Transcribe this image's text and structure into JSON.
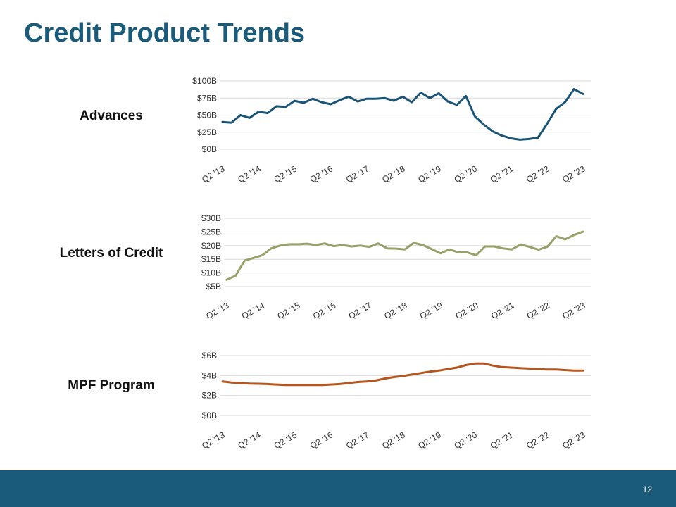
{
  "slide": {
    "title": "Credit Product Trends",
    "page_number": "12",
    "footer_color": "#1a5a7a"
  },
  "chart_data": [
    {
      "type": "line",
      "row_label": "Advances",
      "color": "#1a5577",
      "ylim": [
        0,
        100
      ],
      "yticks": [
        0,
        25,
        50,
        75,
        100
      ],
      "ytick_labels": [
        "$0B",
        "$25B",
        "$50B",
        "$75B",
        "$100B"
      ],
      "grid": true,
      "xtick_labels": [
        "Q2 '13",
        "Q2 '14",
        "Q2 '15",
        "Q2 '16",
        "Q2 '17",
        "Q2 '18",
        "Q2 '19",
        "Q2 '20",
        "Q2 '21",
        "Q2 '22",
        "Q2 '23"
      ],
      "series": [
        {
          "values": [
            40,
            39,
            50,
            46,
            55,
            53,
            63,
            62,
            71,
            68,
            74,
            69,
            66,
            72,
            77,
            70,
            74,
            74,
            75,
            71,
            77,
            69,
            83,
            75,
            82,
            70,
            65,
            78,
            48,
            36,
            26,
            20,
            16,
            14,
            15,
            17,
            37,
            59,
            69,
            88,
            81
          ]
        }
      ]
    },
    {
      "type": "line",
      "row_label": "Letters of Credit",
      "color": "#9aa06a",
      "ylim": [
        5,
        30
      ],
      "yticks": [
        5,
        10,
        15,
        20,
        25,
        30
      ],
      "ytick_labels": [
        "$5B",
        "$10B",
        "$15B",
        "$20B",
        "$25B",
        "$30B"
      ],
      "grid": true,
      "xtick_labels": [
        "Q2 '13",
        "Q2 '14",
        "Q2 '15",
        "Q2 '16",
        "Q2 '17",
        "Q2 '18",
        "Q2 '19",
        "Q2 '20",
        "Q2 '21",
        "Q2 '22",
        "Q2 '23"
      ],
      "series": [
        {
          "values": [
            7.5,
            9,
            14.5,
            15.5,
            16.5,
            19,
            20,
            20.5,
            20.5,
            20.7,
            20.2,
            20.8,
            19.8,
            20.2,
            19.7,
            20,
            19.5,
            20.8,
            19,
            18.9,
            18.6,
            21,
            20.2,
            18.7,
            17.2,
            18.6,
            17.5,
            17.5,
            16.5,
            19.7,
            19.7,
            19,
            18.6,
            20.4,
            19.5,
            18.5,
            19.6,
            23.4,
            22.3,
            23.9,
            25.1
          ]
        }
      ]
    },
    {
      "type": "line",
      "row_label": "MPF Program",
      "color": "#b5561e",
      "ylim": [
        0,
        6
      ],
      "yticks": [
        0,
        2,
        4,
        6
      ],
      "ytick_labels": [
        "$0B",
        "$2B",
        "$4B",
        "$6B"
      ],
      "grid": true,
      "xtick_labels": [
        "Q2 '13",
        "Q2 '14",
        "Q2 '15",
        "Q2 '16",
        "Q2 '17",
        "Q2 '18",
        "Q2 '19",
        "Q2 '20",
        "Q2 '21",
        "Q2 '22",
        "Q2 '23"
      ],
      "series": [
        {
          "values": [
            3.4,
            3.3,
            3.25,
            3.2,
            3.18,
            3.15,
            3.1,
            3.05,
            3.05,
            3.05,
            3.05,
            3.05,
            3.1,
            3.15,
            3.25,
            3.35,
            3.4,
            3.5,
            3.7,
            3.85,
            3.95,
            4.1,
            4.25,
            4.4,
            4.5,
            4.65,
            4.8,
            5.05,
            5.2,
            5.2,
            5.0,
            4.85,
            4.8,
            4.75,
            4.7,
            4.65,
            4.6,
            4.6,
            4.55,
            4.5,
            4.5
          ]
        }
      ]
    }
  ]
}
